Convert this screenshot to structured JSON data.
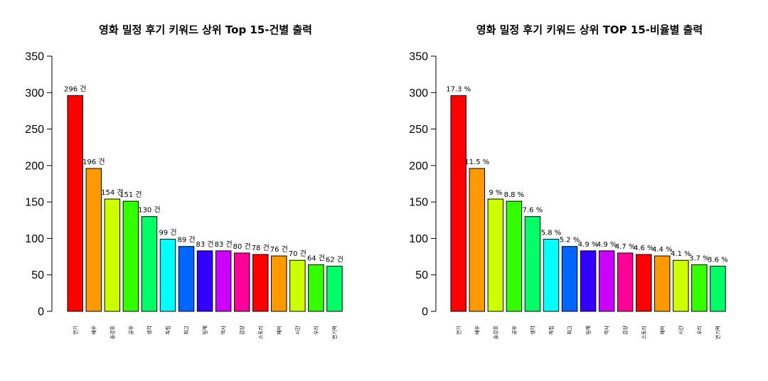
{
  "chart_data": [
    {
      "type": "bar",
      "title": "영화 밀정 후기 키워드 상위 Top 15-건별 출력",
      "xlabel": "",
      "ylabel": "",
      "ylim": [
        0,
        350
      ],
      "yticks": [
        0,
        50,
        100,
        150,
        200,
        250,
        300,
        350
      ],
      "categories": [
        "연기",
        "배우",
        "송강호",
        "공유",
        "생각",
        "독립",
        "최고",
        "일제",
        "역사",
        "감상",
        "스토리",
        "재미",
        "시간",
        "우리",
        "연기력"
      ],
      "values": [
        296,
        196,
        154,
        151,
        130,
        99,
        89,
        83,
        83,
        80,
        78,
        76,
        70,
        64,
        62
      ],
      "data_labels": [
        "296 건",
        "196 건",
        "154 건",
        "151 건",
        "130 건",
        "99 건",
        "89 건",
        "83 건",
        "83 건",
        "80 건",
        "78 건",
        "76 건",
        "70 건",
        "64 건",
        "62 건"
      ],
      "colors": [
        "#FF0000",
        "#FF9900",
        "#CCFF00",
        "#33FF00",
        "#00FF66",
        "#00FFFF",
        "#0066FF",
        "#3300FF",
        "#CC00FF",
        "#FF0099",
        "#FF0000",
        "#FF9900",
        "#CCFF00",
        "#33FF00",
        "#00FF66"
      ],
      "grid": false
    },
    {
      "type": "bar",
      "title": "영화 밀정 후기 키워드 상위 TOP 15-비율별 출력",
      "xlabel": "",
      "ylabel": "",
      "ylim": [
        0,
        350
      ],
      "yticks": [
        0,
        50,
        100,
        150,
        200,
        250,
        300,
        350
      ],
      "categories": [
        "연기",
        "배우",
        "송강호",
        "공유",
        "생각",
        "독립",
        "최고",
        "일제",
        "역사",
        "감상",
        "스토리",
        "재미",
        "시간",
        "우리",
        "연기력"
      ],
      "values": [
        296,
        196,
        154,
        151,
        130,
        99,
        89,
        83,
        83,
        80,
        78,
        76,
        70,
        64,
        62
      ],
      "data_labels": [
        "17.3 %",
        "11.5 %",
        "9 %",
        "8.8 %",
        "7.6 %",
        "5.8 %",
        "5.2 %",
        "4.9 %",
        "4.9 %",
        "4.7 %",
        "4.6 %",
        "4.4 %",
        "4.1 %",
        "3.7 %",
        "3.6 %"
      ],
      "colors": [
        "#FF0000",
        "#FF9900",
        "#CCFF00",
        "#33FF00",
        "#00FF66",
        "#00FFFF",
        "#0066FF",
        "#3300FF",
        "#CC00FF",
        "#FF0099",
        "#FF0000",
        "#FF9900",
        "#CCFF00",
        "#33FF00",
        "#00FF66"
      ],
      "grid": false
    }
  ]
}
